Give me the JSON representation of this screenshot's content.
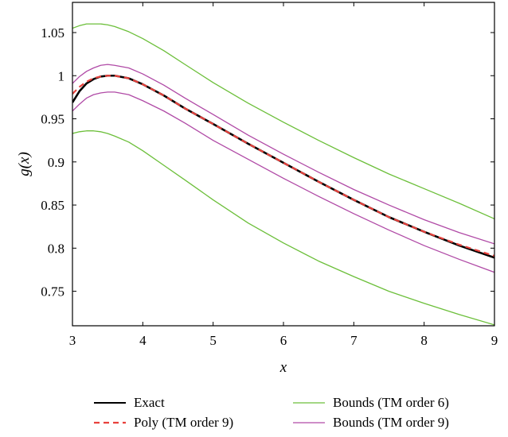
{
  "chart_data": {
    "type": "line",
    "title": "",
    "xlabel": "x",
    "ylabel": "g(x)",
    "xlim": [
      3,
      9
    ],
    "ylim": [
      0.71,
      1.085
    ],
    "xticks": [
      3,
      4,
      5,
      6,
      7,
      8,
      9
    ],
    "xtick_labels": [
      "3",
      "4",
      "5",
      "6",
      "7",
      "8",
      "9"
    ],
    "yticks": [
      0.75,
      0.8,
      0.85,
      0.9,
      0.95,
      1,
      1.05
    ],
    "ytick_labels": [
      "0.75",
      "0.8",
      "0.85",
      "0.9",
      "0.95",
      "1",
      "1.05"
    ],
    "grid": false,
    "legend_position": "bottom",
    "series": [
      {
        "name": "Exact",
        "color": "#000000",
        "style": "solid",
        "x": [
          3.0,
          3.1,
          3.2,
          3.3,
          3.4,
          3.5,
          3.6,
          3.8,
          4.0,
          4.3,
          4.6,
          5.0,
          5.5,
          6.0,
          6.5,
          7.0,
          7.5,
          8.0,
          8.5,
          9.0
        ],
        "y": [
          0.969,
          0.982,
          0.991,
          0.996,
          0.999,
          1.0,
          1.0,
          0.997,
          0.99,
          0.977,
          0.962,
          0.944,
          0.921,
          0.899,
          0.877,
          0.856,
          0.836,
          0.819,
          0.803,
          0.789
        ]
      },
      {
        "name": "Poly (TM order 9)",
        "color": "#e8413c",
        "style": "dashed",
        "x": [
          3.0,
          3.1,
          3.2,
          3.3,
          3.4,
          3.5,
          3.6,
          3.8,
          4.0,
          4.3,
          4.6,
          5.0,
          5.5,
          6.0,
          6.5,
          7.0,
          7.5,
          8.0,
          8.5,
          9.0
        ],
        "y": [
          0.979,
          0.987,
          0.993,
          0.997,
          0.999,
          1.0,
          1.0,
          0.997,
          0.99,
          0.977,
          0.962,
          0.944,
          0.921,
          0.899,
          0.877,
          0.856,
          0.836,
          0.819,
          0.804,
          0.791
        ]
      },
      {
        "name": "Bounds (TM order 6)",
        "color": "#6cbf3a",
        "style": "solid",
        "x": [
          3.0,
          3.1,
          3.2,
          3.3,
          3.4,
          3.5,
          3.6,
          3.8,
          4.0,
          4.3,
          4.6,
          5.0,
          5.5,
          6.0,
          6.5,
          7.0,
          7.5,
          8.0,
          8.5,
          9.0
        ],
        "y": [
          1.055,
          1.058,
          1.06,
          1.06,
          1.06,
          1.059,
          1.057,
          1.051,
          1.043,
          1.029,
          1.013,
          0.992,
          0.968,
          0.946,
          0.925,
          0.905,
          0.886,
          0.869,
          0.852,
          0.834
        ]
      },
      {
        "name": "",
        "color": "#6cbf3a",
        "style": "solid",
        "x": [
          3.0,
          3.1,
          3.2,
          3.3,
          3.4,
          3.5,
          3.6,
          3.8,
          4.0,
          4.3,
          4.6,
          5.0,
          5.5,
          6.0,
          6.5,
          7.0,
          7.5,
          8.0,
          8.5,
          9.0
        ],
        "y": [
          0.933,
          0.935,
          0.936,
          0.936,
          0.935,
          0.933,
          0.93,
          0.923,
          0.913,
          0.896,
          0.879,
          0.856,
          0.829,
          0.806,
          0.785,
          0.767,
          0.75,
          0.736,
          0.723,
          0.711
        ]
      },
      {
        "name": "Bounds (TM order 9)",
        "color": "#b04aa6",
        "style": "solid",
        "x": [
          3.0,
          3.1,
          3.2,
          3.3,
          3.4,
          3.5,
          3.6,
          3.8,
          4.0,
          4.3,
          4.6,
          5.0,
          5.5,
          6.0,
          6.5,
          7.0,
          7.5,
          8.0,
          8.5,
          9.0
        ],
        "y": [
          0.991,
          0.999,
          1.005,
          1.009,
          1.012,
          1.013,
          1.012,
          1.009,
          1.002,
          0.989,
          0.974,
          0.955,
          0.931,
          0.909,
          0.888,
          0.868,
          0.85,
          0.833,
          0.818,
          0.805
        ]
      },
      {
        "name": "",
        "color": "#b04aa6",
        "style": "solid",
        "x": [
          3.0,
          3.1,
          3.2,
          3.3,
          3.4,
          3.5,
          3.6,
          3.8,
          4.0,
          4.3,
          4.6,
          5.0,
          5.5,
          6.0,
          6.5,
          7.0,
          7.5,
          8.0,
          8.5,
          9.0
        ],
        "y": [
          0.959,
          0.967,
          0.974,
          0.978,
          0.98,
          0.981,
          0.981,
          0.978,
          0.971,
          0.959,
          0.945,
          0.925,
          0.903,
          0.881,
          0.86,
          0.84,
          0.821,
          0.803,
          0.787,
          0.772
        ]
      }
    ],
    "legend": [
      {
        "label": "Exact",
        "color": "#000000",
        "style": "solid"
      },
      {
        "label": "Poly (TM order 9)",
        "color": "#e8413c",
        "style": "dashed"
      },
      {
        "label": "Bounds (TM order 6)",
        "color": "#6cbf3a",
        "style": "solid"
      },
      {
        "label": "Bounds (TM order 9)",
        "color": "#b04aa6",
        "style": "solid"
      }
    ]
  }
}
